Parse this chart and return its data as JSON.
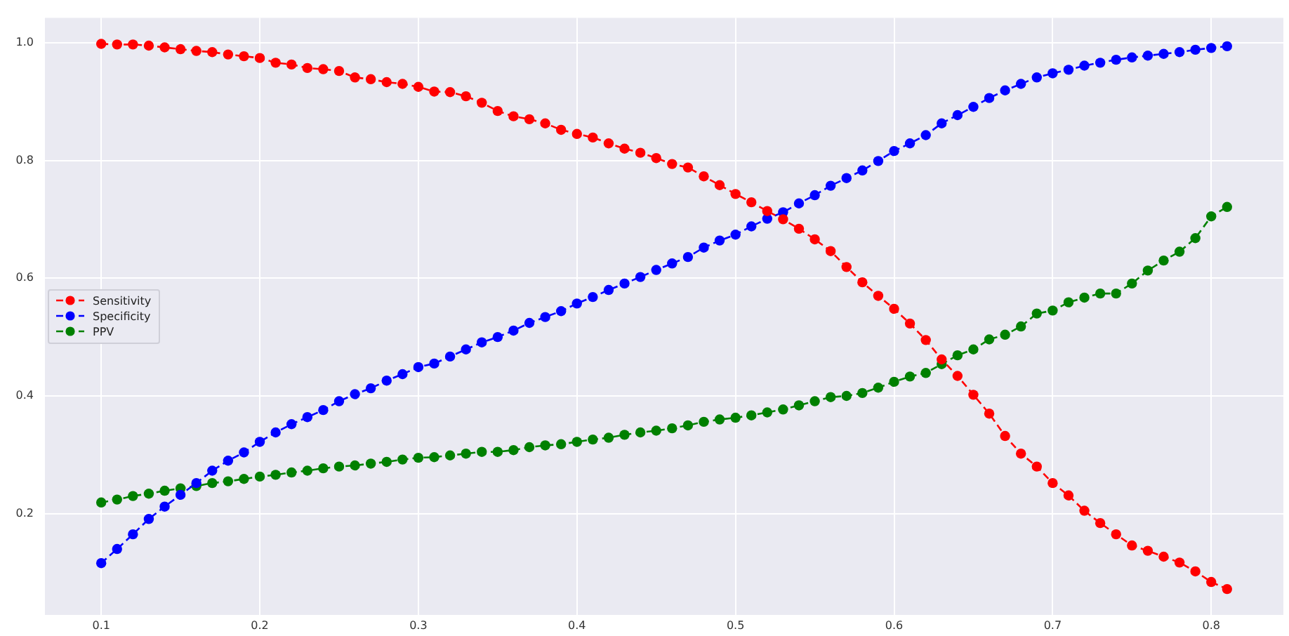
{
  "chart_data": {
    "type": "line",
    "marker": "circle",
    "line_style": "dashed",
    "grid": true,
    "legend": "center left",
    "x": [
      0.1,
      0.11,
      0.12,
      0.13,
      0.14,
      0.15,
      0.16,
      0.17,
      0.18,
      0.19,
      0.2,
      0.21,
      0.22,
      0.23,
      0.24,
      0.25,
      0.26,
      0.27,
      0.28,
      0.29,
      0.3,
      0.31,
      0.32,
      0.33,
      0.34,
      0.35,
      0.36,
      0.37,
      0.38,
      0.39,
      0.4,
      0.41,
      0.42,
      0.43,
      0.44,
      0.45,
      0.46,
      0.47,
      0.48,
      0.49,
      0.5,
      0.51,
      0.52,
      0.53,
      0.54,
      0.55,
      0.56,
      0.57,
      0.58,
      0.59,
      0.6,
      0.61,
      0.62,
      0.63,
      0.64,
      0.65,
      0.66,
      0.67,
      0.68,
      0.69,
      0.7,
      0.71,
      0.72,
      0.73,
      0.74,
      0.75,
      0.76,
      0.77,
      0.78,
      0.79,
      0.8,
      0.81
    ],
    "xlim": [
      0.0645,
      0.8455
    ],
    "xticks": [
      0.1,
      0.2,
      0.3,
      0.4,
      0.5,
      0.6,
      0.7,
      0.8
    ],
    "ylim": [
      0.028,
      1.042
    ],
    "yticks": [
      0.2,
      0.4,
      0.6,
      0.8,
      {
        "value": 1,
        "label": "1.0"
      }
    ],
    "series": [
      {
        "name": "Sensitivity",
        "color": "#ff0000",
        "values": [
          0.998,
          0.997,
          0.997,
          0.995,
          0.992,
          0.989,
          0.986,
          0.984,
          0.98,
          0.977,
          0.974,
          0.966,
          0.963,
          0.957,
          0.955,
          0.952,
          0.941,
          0.938,
          0.933,
          0.93,
          0.925,
          0.917,
          0.916,
          0.909,
          0.898,
          0.884,
          0.875,
          0.87,
          0.863,
          0.852,
          0.845,
          0.839,
          0.829,
          0.82,
          0.813,
          0.804,
          0.794,
          0.788,
          0.773,
          0.758,
          0.743,
          0.729,
          0.714,
          0.7,
          0.684,
          0.666,
          0.646,
          0.619,
          0.593,
          0.57,
          0.548,
          0.523,
          0.495,
          0.462,
          0.434,
          0.402,
          0.37,
          0.332,
          0.302,
          0.28,
          0.252,
          0.231,
          0.205,
          0.184,
          0.165,
          0.146,
          0.137,
          0.127,
          0.117,
          0.102,
          0.084,
          0.072
        ]
      },
      {
        "name": "Specificity",
        "color": "#0000ff",
        "values": [
          0.116,
          0.14,
          0.165,
          0.191,
          0.212,
          0.232,
          0.252,
          0.273,
          0.29,
          0.304,
          0.322,
          0.338,
          0.352,
          0.364,
          0.376,
          0.391,
          0.403,
          0.413,
          0.426,
          0.437,
          0.449,
          0.455,
          0.467,
          0.479,
          0.491,
          0.5,
          0.511,
          0.524,
          0.534,
          0.544,
          0.557,
          0.568,
          0.58,
          0.591,
          0.602,
          0.614,
          0.625,
          0.636,
          0.652,
          0.664,
          0.674,
          0.688,
          0.701,
          0.712,
          0.727,
          0.741,
          0.757,
          0.77,
          0.783,
          0.799,
          0.816,
          0.829,
          0.843,
          0.863,
          0.877,
          0.891,
          0.906,
          0.919,
          0.93,
          0.941,
          0.948,
          0.954,
          0.961,
          0.966,
          0.971,
          0.975,
          0.978,
          0.981,
          0.984,
          0.988,
          0.991,
          0.994
        ]
      },
      {
        "name": "PPV",
        "color": "#008000",
        "values": [
          0.219,
          0.224,
          0.23,
          0.234,
          0.239,
          0.243,
          0.247,
          0.252,
          0.255,
          0.259,
          0.263,
          0.266,
          0.27,
          0.273,
          0.277,
          0.28,
          0.282,
          0.285,
          0.288,
          0.292,
          0.295,
          0.296,
          0.299,
          0.302,
          0.305,
          0.305,
          0.308,
          0.313,
          0.316,
          0.318,
          0.322,
          0.326,
          0.329,
          0.334,
          0.338,
          0.341,
          0.345,
          0.35,
          0.356,
          0.36,
          0.363,
          0.367,
          0.372,
          0.377,
          0.384,
          0.391,
          0.398,
          0.4,
          0.405,
          0.414,
          0.424,
          0.433,
          0.439,
          0.454,
          0.469,
          0.479,
          0.496,
          0.504,
          0.518,
          0.54,
          0.545,
          0.559,
          0.567,
          0.574,
          0.574,
          0.591,
          0.613,
          0.63,
          0.645,
          0.668,
          0.705,
          0.721
        ]
      }
    ]
  }
}
